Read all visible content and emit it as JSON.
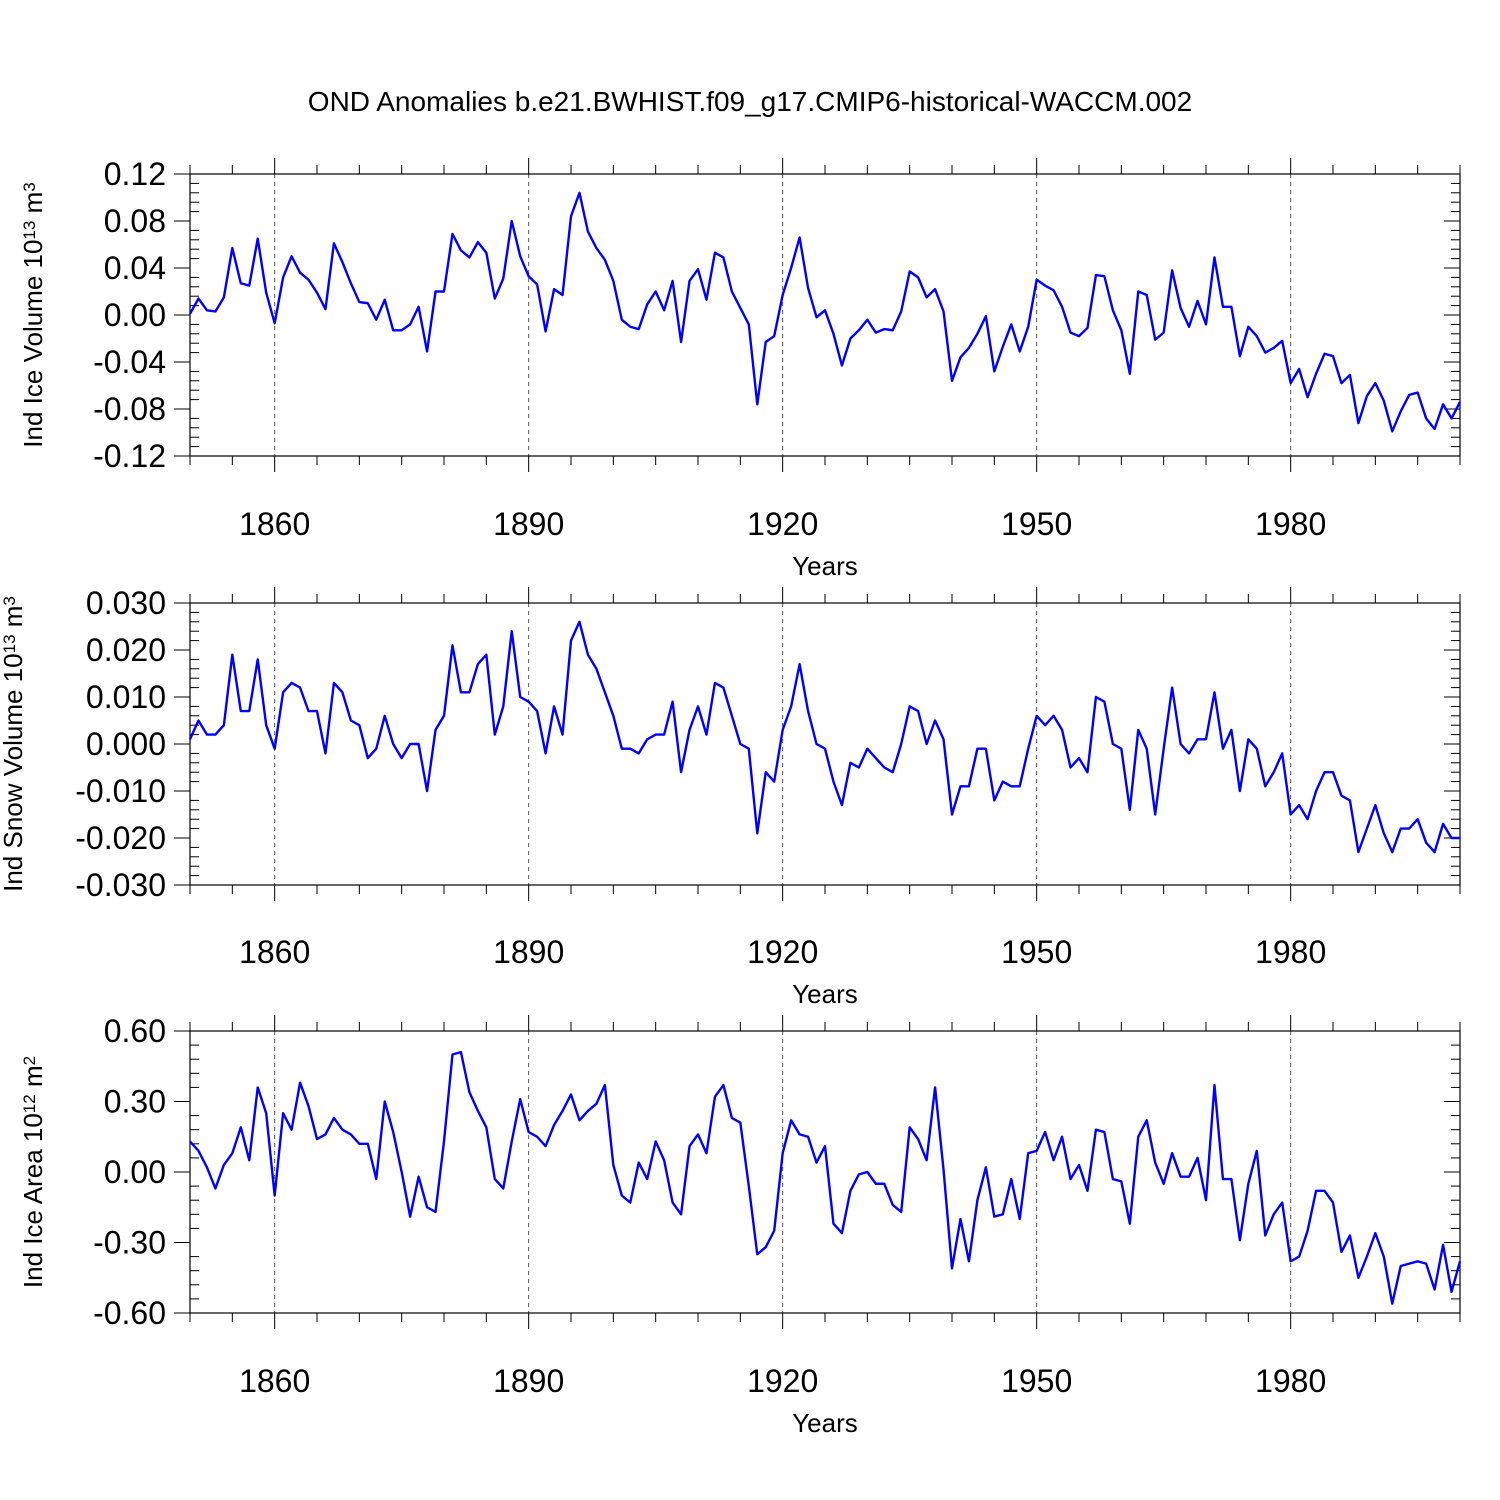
{
  "figure": {
    "title": "OND Anomalies b.e21.BWHIST.f09_g17.CMIP6-historical-WACCM.002"
  },
  "colors": {
    "series": "#0000ff",
    "grid": "#555555",
    "frame": "#000000"
  },
  "chart_data": [
    {
      "type": "line",
      "ylabel": "Ind Ice Volume 10",
      "ylabel_exp": "13",
      "ylabel_unit": " m",
      "ylabel_unit_exp": "3",
      "xlabel": "Years",
      "xlim": [
        1850,
        2000
      ],
      "ylim": [
        -0.12,
        0.12
      ],
      "xticks": [
        1860,
        1890,
        1920,
        1950,
        1980
      ],
      "xtick_labels": [
        "1860",
        "1890",
        "1920",
        "1950",
        "1980"
      ],
      "yticks": [
        -0.12,
        -0.08,
        -0.04,
        0.0,
        0.04,
        0.08,
        0.12
      ],
      "ytick_labels": [
        "-0.12",
        "-0.08",
        "-0.04",
        "0.00",
        "0.04",
        "0.08",
        "0.12"
      ],
      "grid": "vertical dashed at major x ticks",
      "x_start": 1850,
      "x_step": 1,
      "series": [
        {
          "values": [
            0.001,
            0.014,
            0.004,
            0.003,
            0.015,
            0.057,
            0.027,
            0.025,
            0.065,
            0.019,
            -0.007,
            0.032,
            0.05,
            0.036,
            0.03,
            0.019,
            0.005,
            0.061,
            0.045,
            0.027,
            0.011,
            0.01,
            -0.004,
            0.013,
            -0.013,
            -0.013,
            -0.008,
            0.007,
            -0.031,
            0.02,
            0.02,
            0.069,
            0.055,
            0.049,
            0.062,
            0.053,
            0.014,
            0.031,
            0.08,
            0.05,
            0.033,
            0.026,
            -0.014,
            0.022,
            0.017,
            0.084,
            0.104,
            0.071,
            0.057,
            0.047,
            0.029,
            -0.004,
            -0.01,
            -0.012,
            0.009,
            0.02,
            0.004,
            0.029,
            -0.023,
            0.029,
            0.039,
            0.013,
            0.053,
            0.049,
            0.02,
            0.006,
            -0.008,
            -0.076,
            -0.023,
            -0.018,
            0.017,
            0.04,
            0.066,
            0.023,
            -0.002,
            0.004,
            -0.016,
            -0.043,
            -0.02,
            -0.013,
            -0.004,
            -0.015,
            -0.012,
            -0.013,
            0.003,
            0.037,
            0.032,
            0.015,
            0.022,
            0.003,
            -0.056,
            -0.036,
            -0.028,
            -0.016,
            -0.001,
            -0.048,
            -0.027,
            -0.008,
            -0.031,
            -0.01,
            0.03,
            0.025,
            0.021,
            0.007,
            -0.015,
            -0.018,
            -0.011,
            0.034,
            0.033,
            0.004,
            -0.013,
            -0.05,
            0.02,
            0.017,
            -0.021,
            -0.015,
            0.038,
            0.006,
            -0.01,
            0.012,
            -0.008,
            0.049,
            0.007,
            0.007,
            -0.035,
            -0.01,
            -0.018,
            -0.032,
            -0.028,
            -0.022,
            -0.058,
            -0.046,
            -0.07,
            -0.05,
            -0.033,
            -0.035,
            -0.058,
            -0.051,
            -0.092,
            -0.069,
            -0.058,
            -0.073,
            -0.099,
            -0.082,
            -0.068,
            -0.066,
            -0.088,
            -0.097,
            -0.076,
            -0.088,
            -0.074
          ]
        }
      ]
    },
    {
      "type": "line",
      "ylabel": "Ind Snow Volume 10",
      "ylabel_exp": "13",
      "ylabel_unit": " m",
      "ylabel_unit_exp": "3",
      "xlabel": "Years",
      "xlim": [
        1850,
        2000
      ],
      "ylim": [
        -0.03,
        0.03
      ],
      "xticks": [
        1860,
        1890,
        1920,
        1950,
        1980
      ],
      "xtick_labels": [
        "1860",
        "1890",
        "1920",
        "1950",
        "1980"
      ],
      "yticks": [
        -0.03,
        -0.02,
        -0.01,
        0.0,
        0.01,
        0.02,
        0.03
      ],
      "ytick_labels": [
        "-0.030",
        "-0.020",
        "-0.010",
        "0.000",
        "0.010",
        "0.020",
        "0.030"
      ],
      "grid": "vertical dashed at major x ticks",
      "x_start": 1850,
      "x_step": 1,
      "series": [
        {
          "values": [
            0.001,
            0.005,
            0.002,
            0.002,
            0.004,
            0.019,
            0.007,
            0.007,
            0.018,
            0.004,
            -0.001,
            0.011,
            0.013,
            0.012,
            0.007,
            0.007,
            -0.002,
            0.013,
            0.011,
            0.005,
            0.004,
            -0.003,
            -0.001,
            0.006,
            0.0,
            -0.003,
            0.0,
            0.0,
            -0.01,
            0.003,
            0.006,
            0.021,
            0.011,
            0.011,
            0.017,
            0.019,
            0.002,
            0.008,
            0.024,
            0.01,
            0.009,
            0.007,
            -0.002,
            0.008,
            0.002,
            0.022,
            0.026,
            0.019,
            0.016,
            0.011,
            0.006,
            -0.001,
            -0.001,
            -0.002,
            0.001,
            0.002,
            0.002,
            0.009,
            -0.006,
            0.003,
            0.008,
            0.002,
            0.013,
            0.012,
            0.006,
            0.0,
            -0.001,
            -0.019,
            -0.006,
            -0.008,
            0.003,
            0.008,
            0.017,
            0.007,
            0.0,
            -0.001,
            -0.008,
            -0.013,
            -0.004,
            -0.005,
            -0.001,
            -0.003,
            -0.005,
            -0.006,
            0.0,
            0.008,
            0.007,
            0.0,
            0.005,
            0.001,
            -0.015,
            -0.009,
            -0.009,
            -0.001,
            -0.001,
            -0.012,
            -0.008,
            -0.009,
            -0.009,
            -0.001,
            0.006,
            0.004,
            0.006,
            0.003,
            -0.005,
            -0.003,
            -0.006,
            0.01,
            0.009,
            0.0,
            -0.001,
            -0.014,
            0.003,
            -0.001,
            -0.015,
            -0.001,
            0.012,
            0.0,
            -0.002,
            0.001,
            0.001,
            0.011,
            -0.001,
            0.003,
            -0.01,
            0.001,
            -0.001,
            -0.009,
            -0.006,
            -0.002,
            -0.015,
            -0.013,
            -0.016,
            -0.01,
            -0.006,
            -0.006,
            -0.011,
            -0.012,
            -0.023,
            -0.018,
            -0.013,
            -0.019,
            -0.023,
            -0.018,
            -0.018,
            -0.016,
            -0.021,
            -0.023,
            -0.017,
            -0.02,
            -0.02
          ]
        }
      ]
    },
    {
      "type": "line",
      "ylabel": "Ind Ice Area 10",
      "ylabel_exp": "12",
      "ylabel_unit": " m",
      "ylabel_unit_exp": "2",
      "xlabel": "Years",
      "xlim": [
        1850,
        2000
      ],
      "ylim": [
        -0.6,
        0.6
      ],
      "xticks": [
        1860,
        1890,
        1920,
        1950,
        1980
      ],
      "xtick_labels": [
        "1860",
        "1890",
        "1920",
        "1950",
        "1980"
      ],
      "yticks": [
        -0.6,
        -0.3,
        0.0,
        0.3,
        0.6
      ],
      "ytick_labels": [
        "-0.60",
        "-0.30",
        "0.00",
        "0.30",
        "0.60"
      ],
      "grid": "vertical dashed at major x ticks",
      "x_start": 1850,
      "x_step": 1,
      "series": [
        {
          "values": [
            0.13,
            0.09,
            0.02,
            -0.07,
            0.03,
            0.08,
            0.19,
            0.05,
            0.36,
            0.25,
            -0.1,
            0.25,
            0.18,
            0.38,
            0.28,
            0.14,
            0.16,
            0.23,
            0.18,
            0.16,
            0.12,
            0.12,
            -0.03,
            0.3,
            0.17,
            0.0,
            -0.19,
            -0.02,
            -0.15,
            -0.17,
            0.13,
            0.5,
            0.51,
            0.34,
            0.26,
            0.19,
            -0.03,
            -0.07,
            0.13,
            0.31,
            0.17,
            0.15,
            0.11,
            0.2,
            0.26,
            0.33,
            0.22,
            0.26,
            0.29,
            0.37,
            0.03,
            -0.1,
            -0.13,
            0.04,
            -0.03,
            0.13,
            0.05,
            -0.13,
            -0.18,
            0.11,
            0.16,
            0.08,
            0.32,
            0.37,
            0.23,
            0.21,
            -0.06,
            -0.35,
            -0.32,
            -0.25,
            0.08,
            0.22,
            0.16,
            0.15,
            0.04,
            0.11,
            -0.22,
            -0.26,
            -0.08,
            -0.01,
            0.0,
            -0.05,
            -0.05,
            -0.14,
            -0.17,
            0.19,
            0.14,
            0.05,
            0.36,
            0.01,
            -0.41,
            -0.2,
            -0.38,
            -0.12,
            0.02,
            -0.19,
            -0.18,
            -0.03,
            -0.2,
            0.08,
            0.09,
            0.17,
            0.05,
            0.15,
            -0.03,
            0.03,
            -0.08,
            0.18,
            0.17,
            -0.03,
            -0.04,
            -0.22,
            0.15,
            0.22,
            0.04,
            -0.05,
            0.08,
            -0.02,
            -0.02,
            0.06,
            -0.12,
            0.37,
            -0.03,
            -0.03,
            -0.29,
            -0.05,
            0.09,
            -0.27,
            -0.18,
            -0.13,
            -0.38,
            -0.36,
            -0.25,
            -0.08,
            -0.08,
            -0.13,
            -0.34,
            -0.27,
            -0.45,
            -0.36,
            -0.26,
            -0.36,
            -0.56,
            -0.4,
            -0.39,
            -0.38,
            -0.39,
            -0.5,
            -0.31,
            -0.51,
            -0.38
          ]
        }
      ]
    }
  ]
}
